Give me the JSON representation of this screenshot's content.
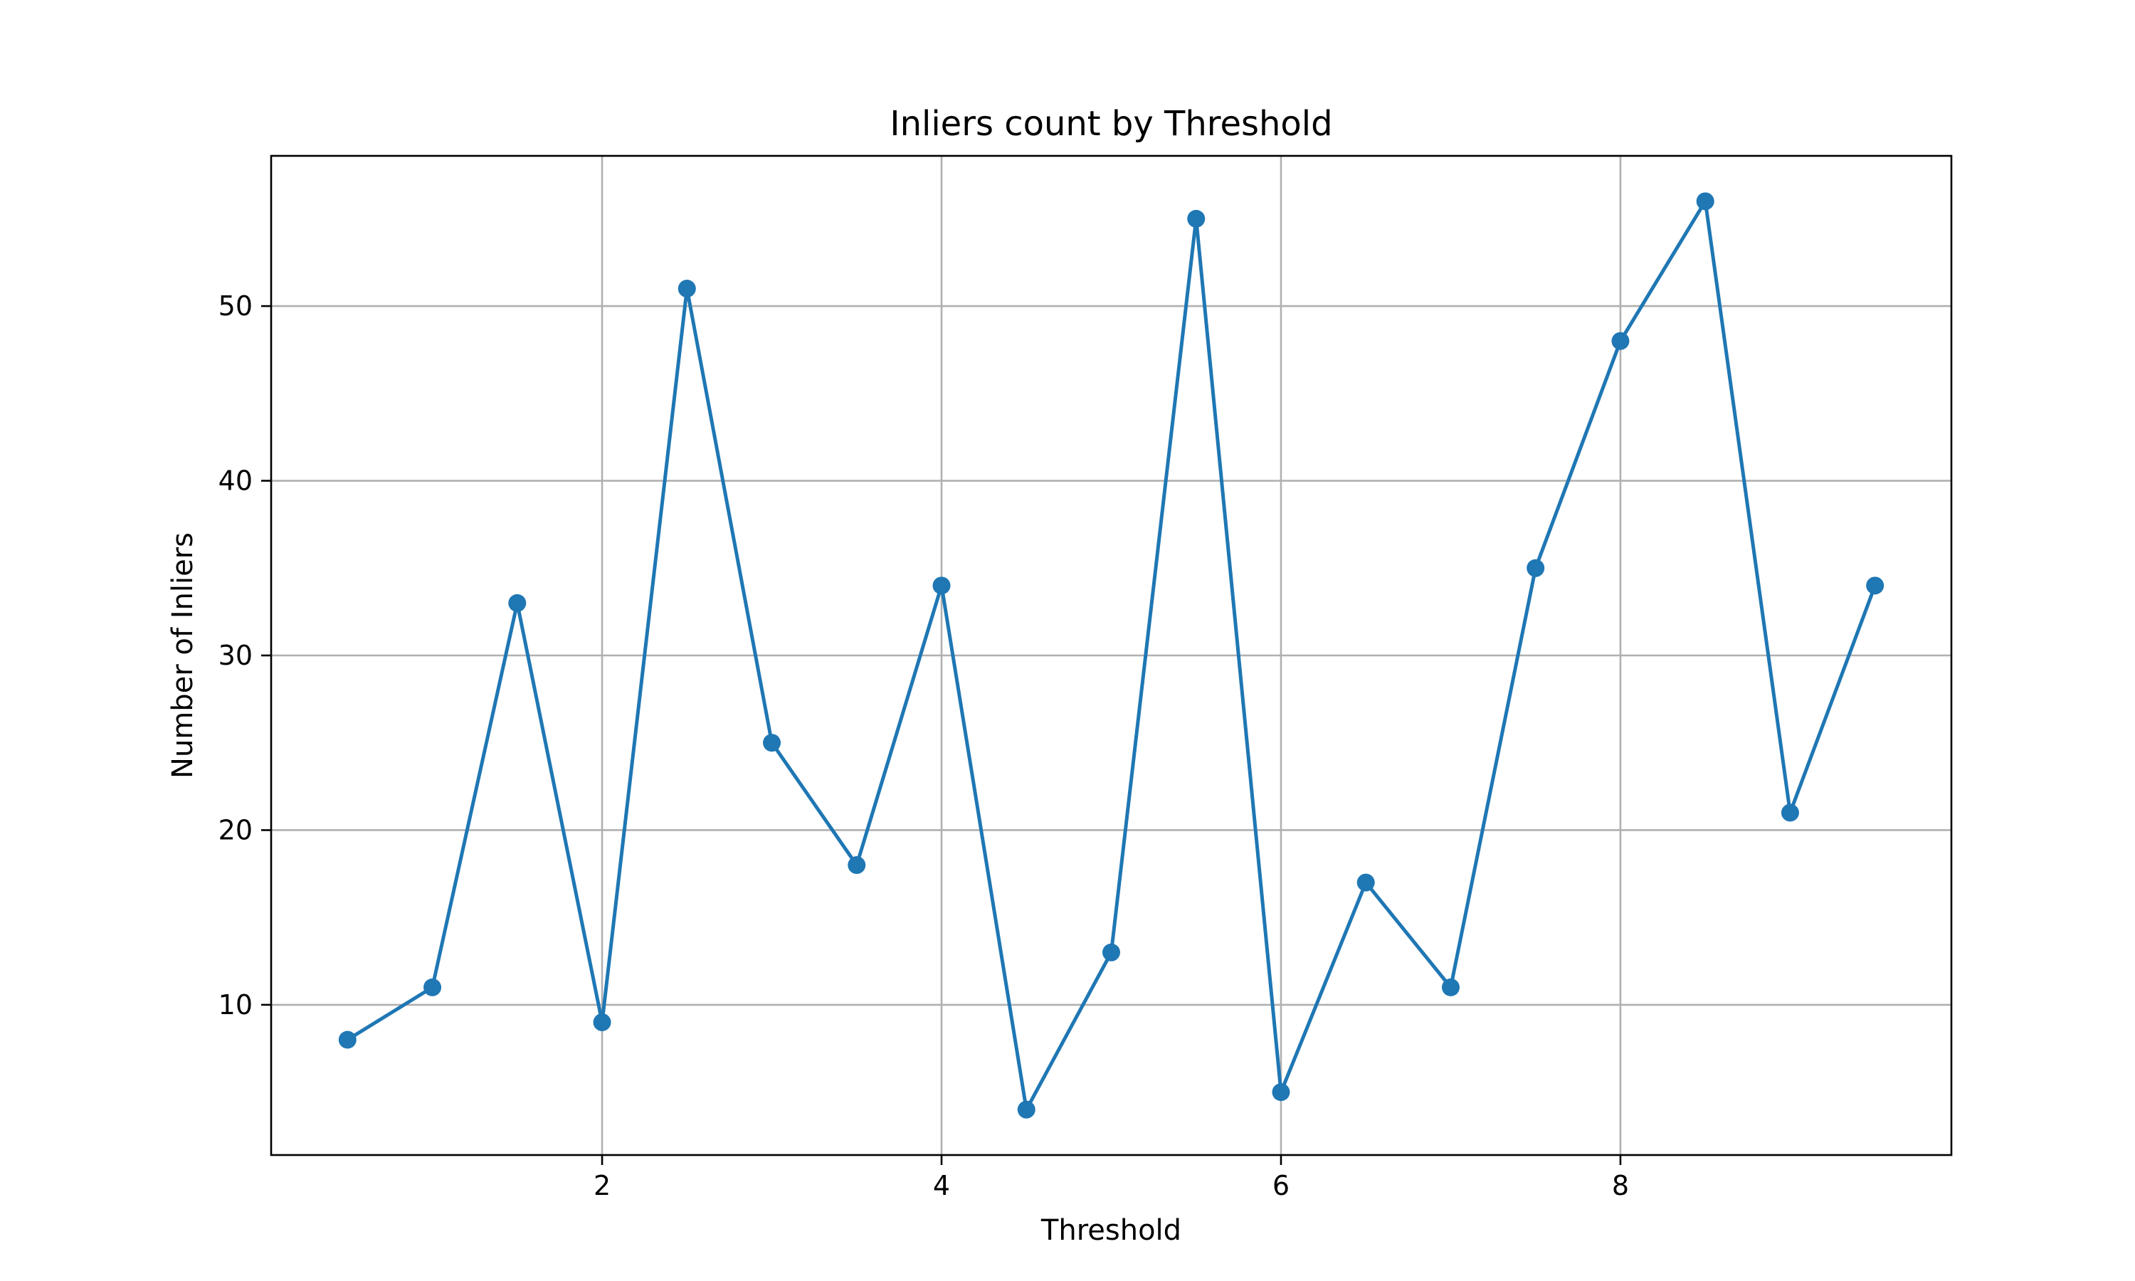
{
  "chart_data": {
    "type": "line",
    "title": "Inliers count by Threshold",
    "xlabel": "Threshold",
    "ylabel": "Number of Inliers",
    "x": [
      0.5,
      1.0,
      1.5,
      2.0,
      2.5,
      3.0,
      3.5,
      4.0,
      4.5,
      5.0,
      5.5,
      6.0,
      6.5,
      7.0,
      7.5,
      8.0,
      8.5,
      9.0,
      9.5
    ],
    "series": [
      {
        "values": [
          8,
          11,
          33,
          9,
          51,
          25,
          18,
          34,
          4,
          13,
          55,
          5,
          17,
          11,
          35,
          48,
          56,
          21,
          34
        ],
        "color": "#1f77b4",
        "marker": "circle"
      }
    ],
    "xlim": [
      0.05,
      9.95
    ],
    "ylim": [
      1.4,
      58.6
    ],
    "xticks": [
      2,
      4,
      6,
      8
    ],
    "yticks": [
      10,
      20,
      30,
      40,
      50
    ],
    "xtick_labels": [
      "2",
      "4",
      "6",
      "8"
    ],
    "ytick_labels": [
      "10",
      "20",
      "30",
      "40",
      "50"
    ],
    "grid": true,
    "legend": "none"
  }
}
